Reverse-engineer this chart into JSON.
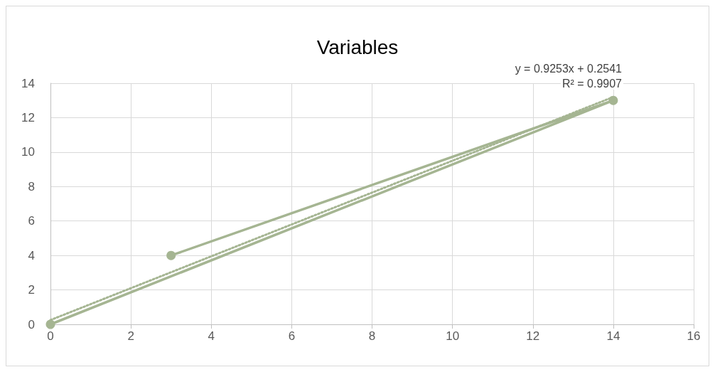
{
  "chart_data": {
    "type": "line",
    "title": "Variables",
    "series": [
      {
        "color": "#a5b592",
        "x": [
          0,
          14,
          3
        ],
        "values": [
          0,
          13,
          4
        ],
        "marker": "circle",
        "line_style": "solid"
      },
      {
        "type": "line",
        "color": "#a5b592",
        "x": [
          0,
          14
        ],
        "values": [
          0.25,
          13.2
        ],
        "marker": "none",
        "line_style": "dotted"
      }
    ],
    "annotations": [
      "y = 0.9253x + 0.2541",
      "R² = 0.9907"
    ],
    "xlim": [
      0,
      16
    ],
    "xticks": [
      0,
      2,
      4,
      6,
      8,
      10,
      12,
      14,
      16
    ],
    "ylim": [
      0,
      14
    ],
    "yticks": [
      0,
      2,
      4,
      6,
      8,
      10,
      12,
      14
    ],
    "grid": true
  }
}
